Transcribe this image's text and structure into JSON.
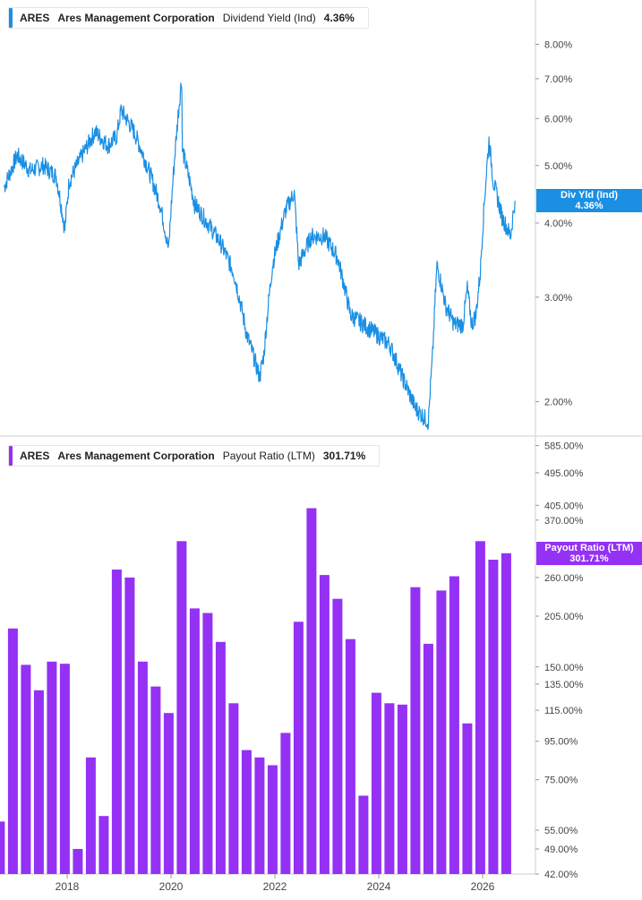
{
  "ticker": "ARES",
  "company": "Ares Management Corporation",
  "top_panel": {
    "metric": "Dividend Yield (Ind)",
    "value": "4.36%",
    "tag_label": "Div Yld (Ind)",
    "color": "#1a8fe3"
  },
  "bottom_panel": {
    "metric": "Payout Ratio (LTM)",
    "value": "301.71%",
    "tag_label": "Payout Ratio (LTM)",
    "color": "#9431f5"
  },
  "x_axis_labels": [
    "2018",
    "2020",
    "2022",
    "2024",
    "2026"
  ],
  "chart_data": [
    {
      "type": "line",
      "title": "",
      "series": [
        {
          "name": "Dividend Yield (Ind)",
          "x": [
            "2016-10",
            "2017-01",
            "2017-04",
            "2017-07",
            "2017-10",
            "2017-12",
            "2018-01",
            "2018-04",
            "2018-07",
            "2018-10",
            "2018-12",
            "2019-01",
            "2019-04",
            "2019-07",
            "2019-10",
            "2019-12",
            "2020-03",
            "2020-03-20",
            "2020-06",
            "2020-09",
            "2020-12",
            "2021-03",
            "2021-06",
            "2021-09",
            "2021-10",
            "2021-12",
            "2022-03",
            "2022-05",
            "2022-06",
            "2022-09",
            "2022-12",
            "2023-03",
            "2023-06",
            "2023-09",
            "2023-12",
            "2024-03",
            "2024-06",
            "2024-09",
            "2024-12",
            "2025-01",
            "2025-02",
            "2025-04",
            "2025-06",
            "2025-08",
            "2025-09",
            "2025-10",
            "2025-11",
            "2025-12",
            "2026-01",
            "2026-02",
            "2026-03",
            "2026-05",
            "2026-07",
            "2026-08"
          ],
          "values": [
            4.6,
            5.2,
            4.9,
            5.0,
            4.8,
            3.9,
            4.7,
            5.2,
            5.7,
            5.4,
            5.6,
            6.2,
            5.7,
            5.0,
            4.3,
            3.6,
            7.0,
            5.3,
            4.3,
            4.0,
            3.7,
            3.3,
            2.6,
            2.2,
            2.4,
            3.4,
            4.2,
            4.5,
            3.4,
            3.8,
            3.8,
            3.5,
            2.8,
            2.7,
            2.6,
            2.5,
            2.2,
            1.95,
            1.85,
            2.4,
            3.4,
            2.9,
            2.7,
            2.7,
            3.1,
            2.7,
            2.8,
            3.3,
            4.4,
            5.5,
            4.7,
            4.1,
            3.8,
            4.36
          ]
        }
      ],
      "ylim": [
        1.75,
        9.5
      ],
      "y_scale": "log",
      "y_ticks": [
        "8.00%",
        "7.00%",
        "6.00%",
        "5.00%",
        "4.00%",
        "3.00%",
        "2.00%"
      ],
      "grid": false,
      "legend": "top-left"
    },
    {
      "type": "bar",
      "title": "",
      "series": [
        {
          "name": "Payout Ratio (LTM)",
          "x": [
            "2016-09",
            "2016-12",
            "2017-03",
            "2017-06",
            "2017-09",
            "2017-12",
            "2018-03",
            "2018-06",
            "2018-09",
            "2018-12",
            "2019-03",
            "2019-06",
            "2019-09",
            "2019-12",
            "2020-03",
            "2020-06",
            "2020-09",
            "2020-12",
            "2021-03",
            "2021-06",
            "2021-09",
            "2021-12",
            "2022-03",
            "2022-06",
            "2022-09",
            "2022-12",
            "2023-03",
            "2023-06",
            "2023-09",
            "2023-12",
            "2024-03",
            "2024-06",
            "2024-09",
            "2024-12",
            "2025-03",
            "2025-06",
            "2025-09",
            "2025-12",
            "2026-03",
            "2026-06"
          ],
          "values": [
            58,
            190,
            152,
            130,
            155,
            153,
            49,
            86,
            60,
            273,
            260,
            155,
            133,
            113,
            325,
            215,
            209,
            175,
            120,
            90,
            86,
            82,
            100,
            198,
            398,
            264,
            228,
            178,
            68,
            128,
            120,
            119,
            245,
            173,
            240,
            262,
            106,
            325,
            290,
            301.71
          ]
        }
      ],
      "ylim": [
        42,
        620
      ],
      "y_scale": "log",
      "y_ticks": [
        "585.00%",
        "495.00%",
        "405.00%",
        "370.00%",
        "260.00%",
        "205.00%",
        "150.00%",
        "135.00%",
        "115.00%",
        "95.00%",
        "75.00%",
        "55.00%",
        "49.00%",
        "42.00%"
      ],
      "grid": false,
      "legend": "top-left"
    }
  ]
}
